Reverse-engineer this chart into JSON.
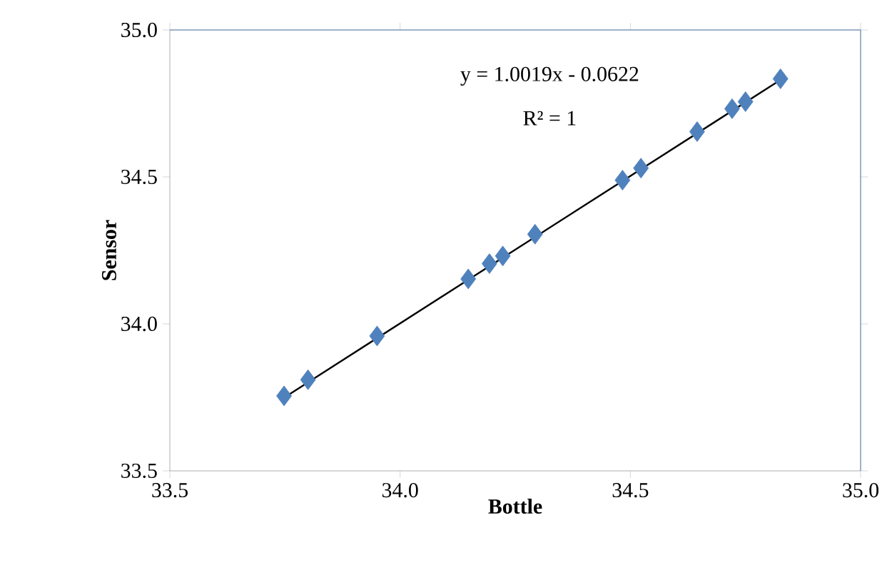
{
  "chart_data": {
    "type": "scatter",
    "xlabel": "Bottle",
    "ylabel": "Sensor",
    "annotations": [
      "y = 1.0019x - 0.0622",
      "R² = 1"
    ],
    "xlim": [
      33.5,
      35.0
    ],
    "xticks": [
      33.5,
      {
        "value": 34.0,
        "label": "34.0"
      },
      34.5,
      {
        "value": 35.0,
        "label": "35.0"
      }
    ],
    "ylim": [
      33.5,
      35.0
    ],
    "yticks": [
      33.5,
      {
        "value": 34.0,
        "label": "34.0"
      },
      34.5,
      {
        "value": 35.0,
        "label": "35.0"
      }
    ],
    "grid": false,
    "marker": "diamond",
    "series": [
      {
        "type": "scatter",
        "color": "#4f81bd",
        "x": [
          33.748,
          33.8,
          33.95,
          34.148,
          34.194,
          34.223,
          34.293,
          34.483,
          34.523,
          34.645,
          34.721,
          34.75,
          34.826
        ],
        "values": [
          33.755,
          33.81,
          33.959,
          34.153,
          34.205,
          34.231,
          34.305,
          34.489,
          34.53,
          34.654,
          34.732,
          34.756,
          34.834
        ]
      },
      {
        "type": "line",
        "color": "#000000",
        "marker": "none",
        "line_style": "solid",
        "x": [
          33.748,
          34.826
        ],
        "values": [
          33.749,
          34.83
        ]
      }
    ]
  }
}
